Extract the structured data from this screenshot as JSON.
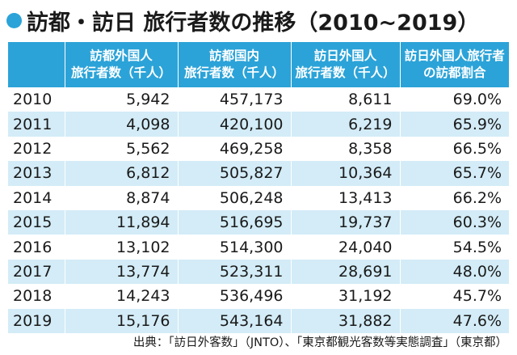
{
  "colors": {
    "header_bg": "#2BA3D8",
    "row_alt_bg": "#D3ECF7",
    "row_bg": "#FFFFFF",
    "bullet": "#2BA3D8"
  },
  "title": {
    "bullet_icon": "filled-circle",
    "text": "訪都・訪日 旅行者数の推移（2010~2019）"
  },
  "table": {
    "headers": [
      "",
      [
        "訪都外国人",
        "旅行者数（千人）"
      ],
      [
        "訪都国内",
        "旅行者数（千人）"
      ],
      [
        "訪日外国人",
        "旅行者数（千人）"
      ],
      [
        "訪日外国人旅行者",
        "の訪都割合"
      ]
    ],
    "rows": [
      [
        "2010",
        "5,942",
        "457,173",
        "8,611",
        "69.0%"
      ],
      [
        "2011",
        "4,098",
        "420,100",
        "6,219",
        "65.9%"
      ],
      [
        "2012",
        "5,562",
        "469,258",
        "8,358",
        "66.5%"
      ],
      [
        "2013",
        "6,812",
        "505,827",
        "10,364",
        "65.7%"
      ],
      [
        "2014",
        "8,874",
        "506,248",
        "13,413",
        "66.2%"
      ],
      [
        "2015",
        "11,894",
        "516,695",
        "19,737",
        "60.3%"
      ],
      [
        "2016",
        "13,102",
        "514,300",
        "24,040",
        "54.5%"
      ],
      [
        "2017",
        "13,774",
        "523,311",
        "28,691",
        "48.0%"
      ],
      [
        "2018",
        "14,243",
        "536,496",
        "31,192",
        "45.7%"
      ],
      [
        "2019",
        "15,176",
        "543,164",
        "31,882",
        "47.6%"
      ]
    ]
  },
  "source": "出典：「訪日外客数」（JNTO）、「東京都観光客数等実態調査」（東京都）"
}
